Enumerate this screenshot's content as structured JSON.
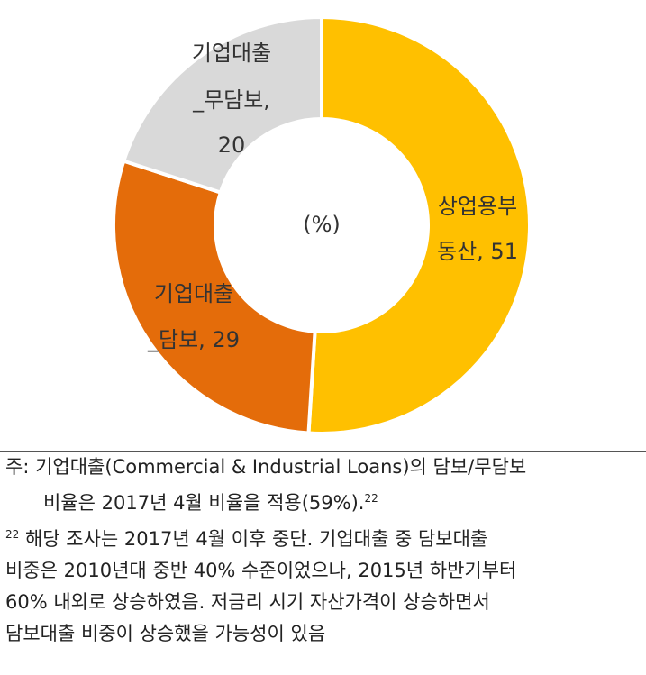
{
  "chart_data": {
    "type": "donut",
    "center_label": "(%)",
    "categories": [
      "상업용부동산",
      "기업대출_담보",
      "기업대출_무담보"
    ],
    "values": [
      51,
      29,
      20
    ],
    "value_labels": [
      [
        "상업용부",
        "동산, 51"
      ],
      [
        "기업대출",
        "_담보, 29"
      ],
      [
        "기업대출",
        "_무담보,",
        "20"
      ]
    ],
    "colors": [
      "#FFC000",
      "#E46C0A",
      "#D9D9D9"
    ]
  },
  "note": {
    "label": "주:",
    "lines": [
      "기업대출(Commercial & Industrial Loans)의 담보/무담보",
      "비율은 2017년 4월 비율을 적용(59%)."
    ],
    "ref": "22"
  },
  "footnote": {
    "ref": "22",
    "lines": [
      "해당 조사는 2017년 4월 이후 중단. 기업대출 중 담보대출",
      "비중은 2010년대 중반 40% 수준이었으나, 2015년 하반기부터",
      "60% 내외로 상승하였음. 저금리 시기 자산가격이 상승하면서",
      "담보대출 비중이 상승했을 가능성이 있음"
    ]
  }
}
